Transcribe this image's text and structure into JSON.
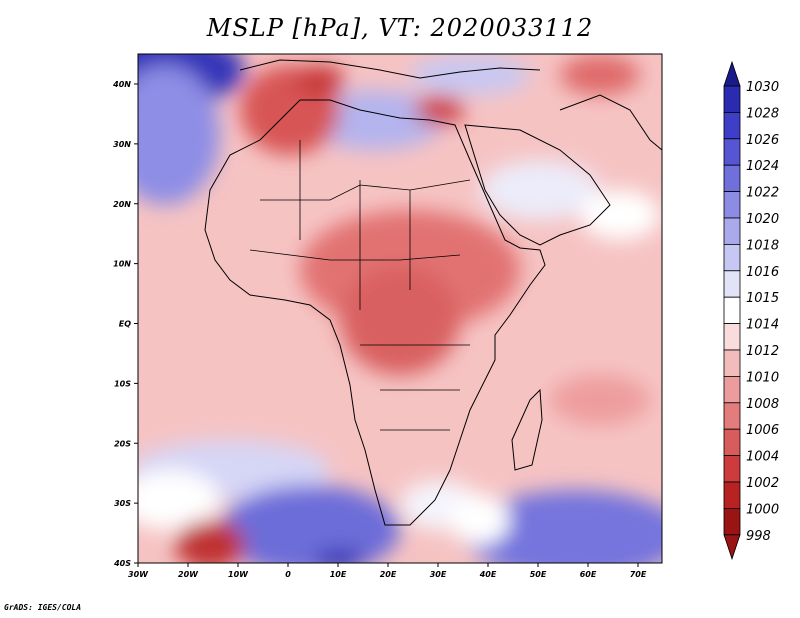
{
  "title": "MSLP [hPa], VT: 2020033112",
  "footer": "GrADS: IGES/COLA",
  "map": {
    "lon_labels": [
      "30W",
      "20W",
      "10W",
      "0",
      "10E",
      "20E",
      "30E",
      "40E",
      "50E",
      "60E",
      "70E"
    ],
    "lat_labels": [
      "40N",
      "30N",
      "20N",
      "10N",
      "EQ",
      "10S",
      "20S",
      "30S",
      "40S"
    ]
  },
  "colorbar": {
    "levels": [
      "1030",
      "1028",
      "1026",
      "1024",
      "1022",
      "1020",
      "1018",
      "1016",
      "1015",
      "1014",
      "1012",
      "1010",
      "1008",
      "1006",
      "1004",
      "1002",
      "1000",
      "998"
    ],
    "colors": [
      "#1a1a8c",
      "#2b2bb0",
      "#3e3ec8",
      "#5656d4",
      "#7070dd",
      "#8c8ce4",
      "#a9a9ec",
      "#c7c7f3",
      "#e3e3f8",
      "#ffffff",
      "#f9dcdc",
      "#f3bcbc",
      "#ec9c9c",
      "#e37c7c",
      "#d95c5c",
      "#cc3c3c",
      "#b82222",
      "#9a1414"
    ]
  }
}
